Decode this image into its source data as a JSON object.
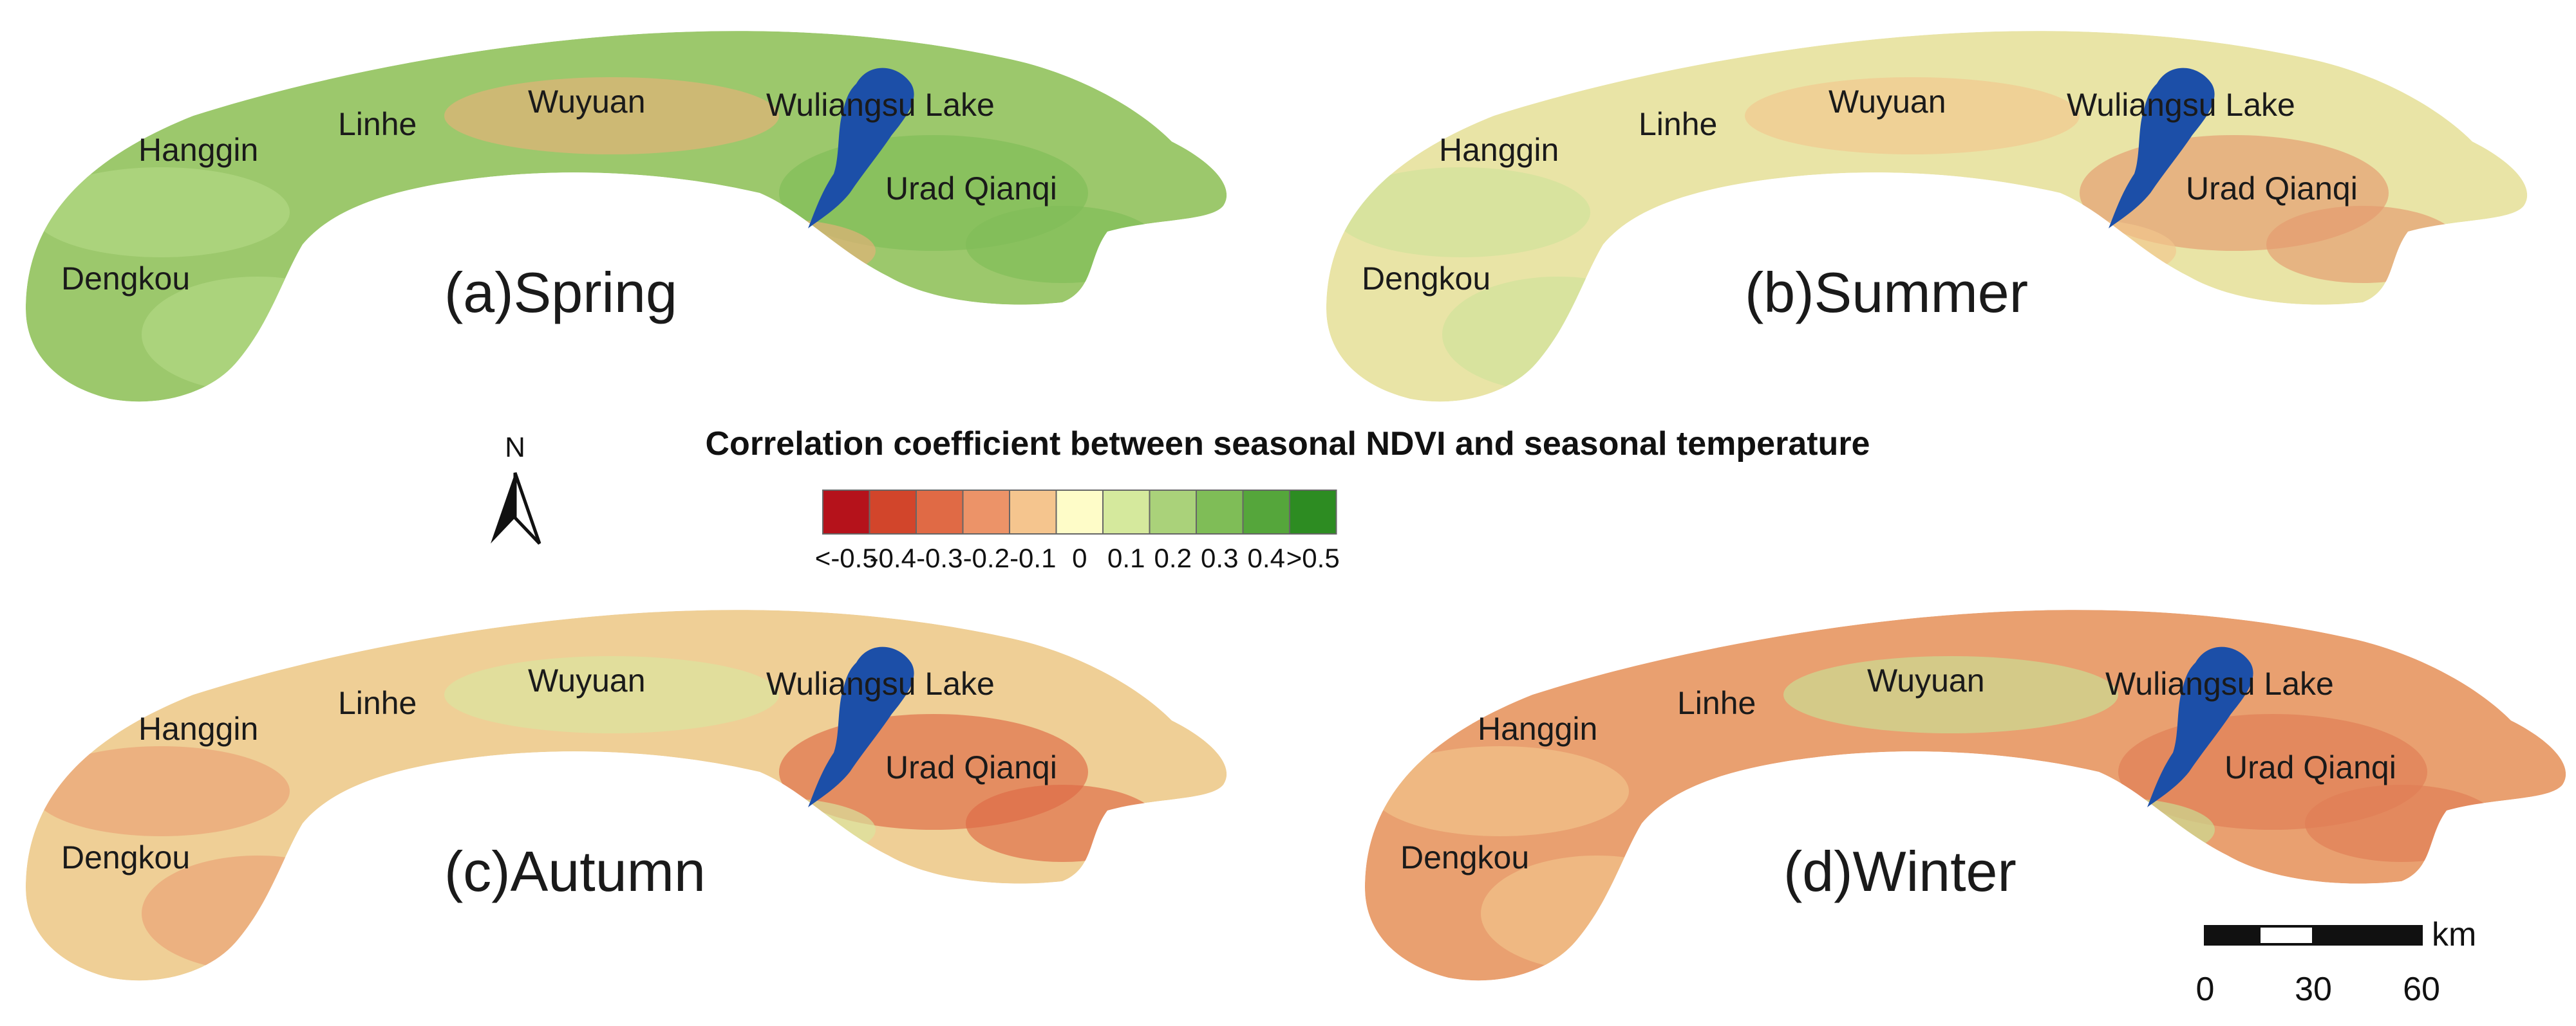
{
  "legend": {
    "title": "Correlation coefficient between seasonal NDVI and seasonal temperature",
    "classes": [
      {
        "label": "<-0.5",
        "color": "#b5121b"
      },
      {
        "label": "-0.4",
        "color": "#d2452b"
      },
      {
        "label": "-0.3",
        "color": "#e06a45"
      },
      {
        "label": "-0.2",
        "color": "#ec9368"
      },
      {
        "label": "-0.1",
        "color": "#f5c58e"
      },
      {
        "label": "0",
        "color": "#fefcc8"
      },
      {
        "label": "0.1",
        "color": "#d5e99d"
      },
      {
        "label": "0.2",
        "color": "#aad27a"
      },
      {
        "label": "0.3",
        "color": "#7fbd57"
      },
      {
        "label": "0.4",
        "color": "#55a63b"
      },
      {
        "label": ">0.5",
        "color": "#2d8c22"
      }
    ]
  },
  "north_arrow": {
    "label": "N"
  },
  "scale_bar": {
    "unit": "km",
    "ticks": [
      "0",
      "30",
      "60"
    ]
  },
  "lake_color": "#1c4fa8",
  "panels": [
    {
      "id": "a",
      "label": "(a)Spring",
      "dominant_color": "#9cc86c",
      "patch_colors": [
        "#7fbd57",
        "#b4d886",
        "#e8b07a"
      ],
      "places": {
        "hanggin": "Hanggin",
        "linhe": "Linhe",
        "wuyuan": "Wuyuan",
        "lake": "Wuliangsu Lake",
        "urad": "Urad Qianqi",
        "dengkou": "Dengkou"
      }
    },
    {
      "id": "b",
      "label": "(b)Summer",
      "dominant_color": "#e9e4a6",
      "patch_colors": [
        "#e59a6e",
        "#cfe29a",
        "#f3c68e"
      ],
      "places": {
        "hanggin": "Hanggin",
        "linhe": "Linhe",
        "wuyuan": "Wuyuan",
        "lake": "Wuliangsu Lake",
        "urad": "Urad Qianqi",
        "dengkou": "Dengkou"
      }
    },
    {
      "id": "c",
      "label": "(c)Autumn",
      "dominant_color": "#efcf96",
      "patch_colors": [
        "#dd6a45",
        "#e9a274",
        "#d9e7a0"
      ],
      "places": {
        "hanggin": "Hanggin",
        "linhe": "Linhe",
        "wuyuan": "Wuyuan",
        "lake": "Wuliangsu Lake",
        "urad": "Urad Qianqi",
        "dengkou": "Dengkou"
      }
    },
    {
      "id": "d",
      "label": "(d)Winter",
      "dominant_color": "#e9a070",
      "patch_colors": [
        "#e07c55",
        "#f2c48c",
        "#c9e095"
      ],
      "places": {
        "hanggin": "Hanggin",
        "linhe": "Linhe",
        "wuyuan": "Wuyuan",
        "lake": "Wuliangsu Lake",
        "urad": "Urad Qianqi",
        "dengkou": "Dengkou"
      }
    }
  ]
}
